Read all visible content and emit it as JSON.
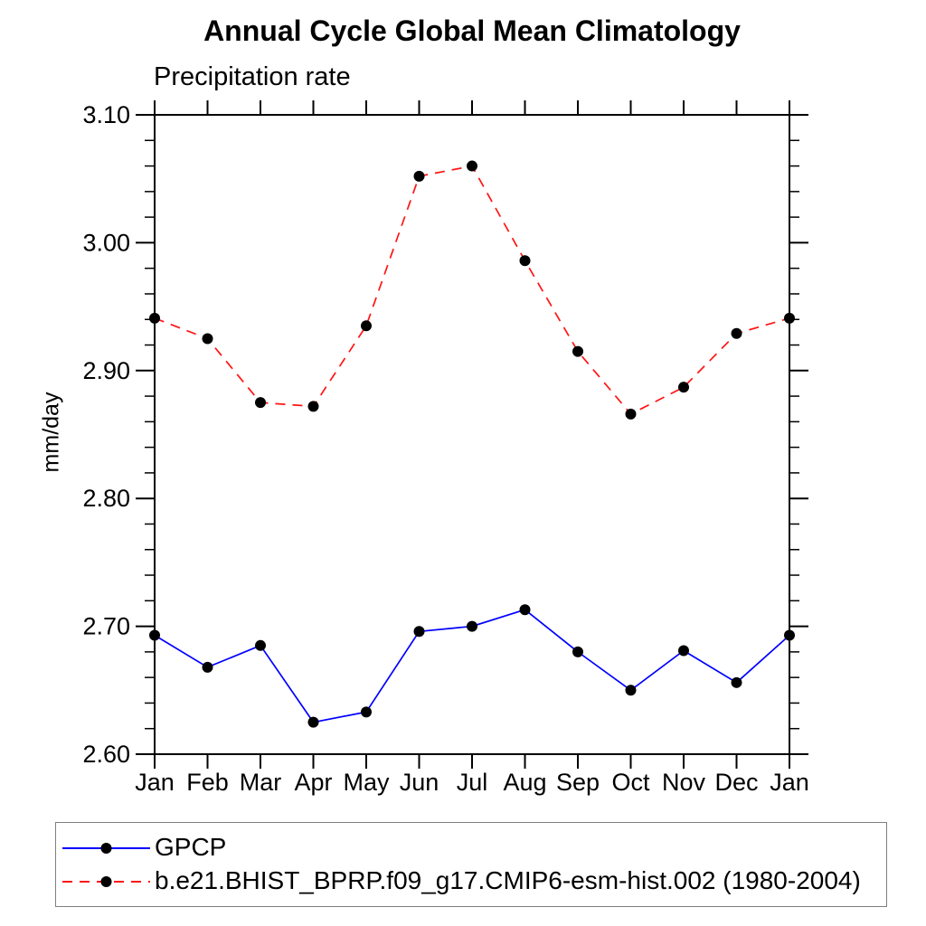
{
  "chart_data": {
    "type": "line",
    "title": "Annual Cycle Global Mean Climatology",
    "subtitle": "Precipitation rate",
    "ylabel": "mm/day",
    "xlabel": "",
    "categories": [
      "Jan",
      "Feb",
      "Mar",
      "Apr",
      "May",
      "Jun",
      "Jul",
      "Aug",
      "Sep",
      "Oct",
      "Nov",
      "Dec",
      "Jan"
    ],
    "ylim": [
      2.6,
      3.1
    ],
    "ytick_values": [
      2.6,
      2.7,
      2.8,
      2.9,
      3.0,
      3.1
    ],
    "ytick_labels": [
      "2.60",
      "2.70",
      "2.80",
      "2.90",
      "3.00",
      "3.10"
    ],
    "ytick_minor_step": 0.02,
    "grid": false,
    "frame_color": "#000000",
    "marker": {
      "shape": "circle",
      "color": "#000000",
      "radius": 6
    },
    "legend_position": "bottom-left-box",
    "series": [
      {
        "name": "GPCP",
        "color": "#0000ff",
        "line_style": "solid",
        "values": [
          2.693,
          2.668,
          2.685,
          2.625,
          2.633,
          2.696,
          2.7,
          2.713,
          2.68,
          2.65,
          2.681,
          2.656,
          2.693
        ]
      },
      {
        "name": "b.e21.BHIST_BPRP.f09_g17.CMIP6-esm-hist.002 (1980-2004)",
        "color": "#ff1414",
        "line_style": "dashed",
        "values": [
          2.941,
          2.925,
          2.875,
          2.872,
          2.935,
          3.052,
          3.06,
          2.986,
          2.915,
          2.866,
          2.887,
          2.929,
          2.941
        ]
      }
    ]
  }
}
